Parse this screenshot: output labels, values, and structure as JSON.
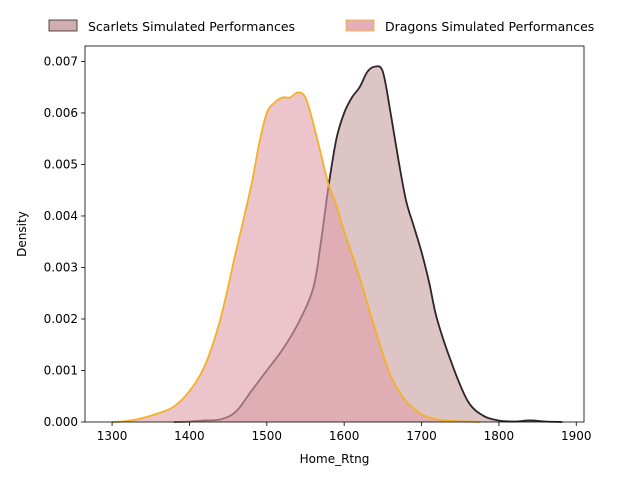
{
  "chart_data": {
    "type": "area",
    "title": "",
    "xlabel": "Home_Rtng",
    "ylabel": "Density",
    "xlim": [
      1265,
      1910
    ],
    "ylim": [
      0,
      0.0073
    ],
    "xticks": [
      1300,
      1400,
      1500,
      1600,
      1700,
      1800,
      1900
    ],
    "yticks": [
      0.0,
      0.001,
      0.002,
      0.003,
      0.004,
      0.005,
      0.006,
      0.007
    ],
    "ytick_labels": [
      "0.000",
      "0.001",
      "0.002",
      "0.003",
      "0.004",
      "0.005",
      "0.006",
      "0.007"
    ],
    "grid": false,
    "legend": {
      "placement": "top-outside",
      "entries": [
        "Scarlets Simulated Performances",
        "Dragons Simulated Performances"
      ]
    },
    "series": [
      {
        "name": "Scarlets Simulated Performances",
        "fill": "#c8a0a2",
        "line": "#2f2428",
        "x": [
          1380,
          1400,
          1420,
          1440,
          1460,
          1480,
          1500,
          1520,
          1540,
          1560,
          1570,
          1580,
          1590,
          1600,
          1610,
          1620,
          1630,
          1640,
          1650,
          1660,
          1670,
          1680,
          1690,
          1700,
          1710,
          1720,
          1740,
          1760,
          1780,
          1800,
          1820,
          1840,
          1860,
          1882
        ],
        "y": [
          0.0,
          1e-05,
          3e-05,
          5e-05,
          0.0002,
          0.0006,
          0.001,
          0.0014,
          0.0019,
          0.0026,
          0.0035,
          0.0046,
          0.0055,
          0.006,
          0.0063,
          0.0065,
          0.0068,
          0.0069,
          0.0068,
          0.006,
          0.0051,
          0.0043,
          0.0038,
          0.0033,
          0.0027,
          0.002,
          0.0011,
          0.0004,
          0.00012,
          3e-05,
          1e-05,
          3e-05,
          1e-05,
          0.0
        ]
      },
      {
        "name": "Dragons Simulated Performances",
        "fill": "#e0a0ab",
        "line": "#f5b025",
        "x": [
          1300,
          1320,
          1340,
          1360,
          1380,
          1400,
          1420,
          1440,
          1460,
          1480,
          1490,
          1500,
          1510,
          1520,
          1530,
          1540,
          1550,
          1560,
          1570,
          1580,
          1590,
          1600,
          1620,
          1640,
          1660,
          1680,
          1700,
          1720,
          1740,
          1760,
          1775
        ],
        "y": [
          0.0,
          2e-05,
          8e-05,
          0.00017,
          0.0003,
          0.0006,
          0.0011,
          0.002,
          0.0033,
          0.0046,
          0.0054,
          0.006,
          0.0062,
          0.0063,
          0.0063,
          0.0064,
          0.0063,
          0.0058,
          0.0052,
          0.0046,
          0.0042,
          0.0037,
          0.0028,
          0.0018,
          0.0009,
          0.0004,
          0.00015,
          5e-05,
          2e-05,
          1e-05,
          0.0
        ]
      }
    ]
  }
}
